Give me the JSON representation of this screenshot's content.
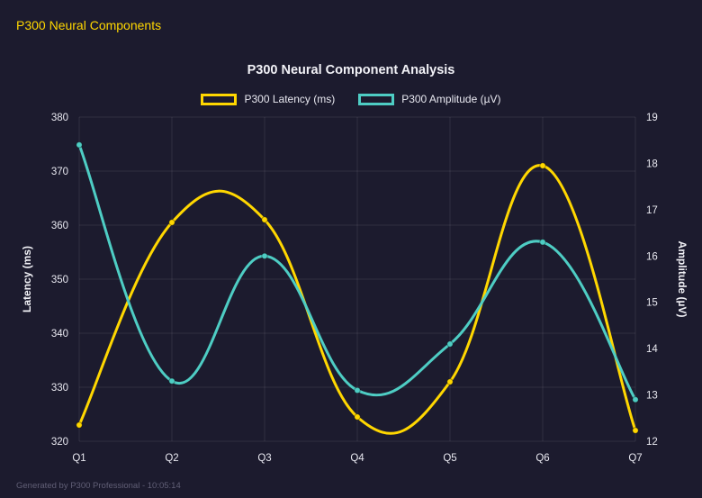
{
  "page": {
    "title": "P300 Neural Components",
    "footer": "Generated by P300 Professional - 10:05:14"
  },
  "chart_data": {
    "type": "line",
    "title": "P300 Neural Component Analysis",
    "categories": [
      "Q1",
      "Q2",
      "Q3",
      "Q4",
      "Q5",
      "Q6",
      "Q7"
    ],
    "series": [
      {
        "name": "P300 Latency (ms)",
        "color": "#ffd700",
        "axis": "left",
        "values": [
          323,
          360.5,
          361,
          324.5,
          331,
          371,
          322
        ]
      },
      {
        "name": "P300 Amplitude (µV)",
        "color": "#4ecdc4",
        "axis": "right",
        "values": [
          18.4,
          13.3,
          16.0,
          13.1,
          14.1,
          16.3,
          12.9
        ]
      }
    ],
    "left_axis": {
      "label": "Latency (ms)",
      "min": 320,
      "max": 380,
      "ticks": [
        320,
        330,
        340,
        350,
        360,
        370,
        380
      ]
    },
    "right_axis": {
      "label": "Amplitude (µV)",
      "min": 12,
      "max": 19,
      "ticks": [
        12,
        13,
        14,
        15,
        16,
        17,
        18,
        19
      ]
    },
    "grid": true,
    "legend_position": "top",
    "smoothing": 0.2,
    "colors": {
      "background": "#1c1b2e",
      "grid": "rgba(255,255,255,0.09)",
      "tick_text": "#e8e8f0",
      "axis_title": "#f2f2f7"
    }
  }
}
